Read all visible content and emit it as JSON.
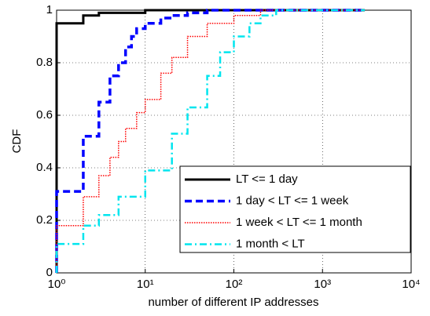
{
  "chart_data": {
    "type": "line",
    "step": "post",
    "xlabel": "number of different IP addresses",
    "ylabel": "CDF",
    "xscale": "log",
    "xlim": [
      1,
      10000
    ],
    "ylim": [
      0,
      1
    ],
    "grid": true,
    "legend": "lower right",
    "xticks": [
      {
        "value": 1,
        "label": "10⁰"
      },
      {
        "value": 10,
        "label": "10¹"
      },
      {
        "value": 100,
        "label": "10²"
      },
      {
        "value": 1000,
        "label": "10³"
      },
      {
        "value": 10000,
        "label": "10⁴"
      }
    ],
    "yticks": [
      0,
      0.2,
      0.4,
      0.6,
      0.8,
      1
    ],
    "series": [
      {
        "name": "LT <= 1 day",
        "color": "#000000",
        "dash": "solid",
        "x": [
          1,
          1,
          2,
          3,
          10,
          3000
        ],
        "values": [
          0,
          0.95,
          0.98,
          0.99,
          1,
          1
        ]
      },
      {
        "name": "1 day < LT <= 1 week",
        "color": "#0000ff",
        "dash": "dashed",
        "x": [
          1,
          1,
          2,
          3,
          4,
          5,
          6,
          7,
          8,
          10,
          15,
          20,
          30,
          50,
          3000
        ],
        "values": [
          0,
          0.31,
          0.52,
          0.65,
          0.75,
          0.8,
          0.86,
          0.9,
          0.93,
          0.95,
          0.97,
          0.98,
          0.99,
          1,
          1
        ]
      },
      {
        "name": "1 week < LT <= 1 month",
        "color": "#ff0000",
        "dash": "dotted",
        "x": [
          1,
          1,
          2,
          3,
          4,
          5,
          6,
          8,
          10,
          15,
          20,
          30,
          50,
          100,
          200,
          3000
        ],
        "values": [
          0,
          0.18,
          0.29,
          0.37,
          0.44,
          0.5,
          0.55,
          0.61,
          0.66,
          0.76,
          0.82,
          0.9,
          0.95,
          0.98,
          1,
          1
        ]
      },
      {
        "name": "1 month < LT",
        "color": "#00e5ee",
        "dash": "dashdot",
        "x": [
          1,
          1,
          2,
          3,
          5,
          10,
          20,
          30,
          50,
          70,
          100,
          150,
          200,
          300,
          3000
        ],
        "values": [
          0,
          0.11,
          0.18,
          0.22,
          0.29,
          0.39,
          0.53,
          0.63,
          0.75,
          0.84,
          0.9,
          0.95,
          0.98,
          1,
          1
        ]
      }
    ]
  }
}
